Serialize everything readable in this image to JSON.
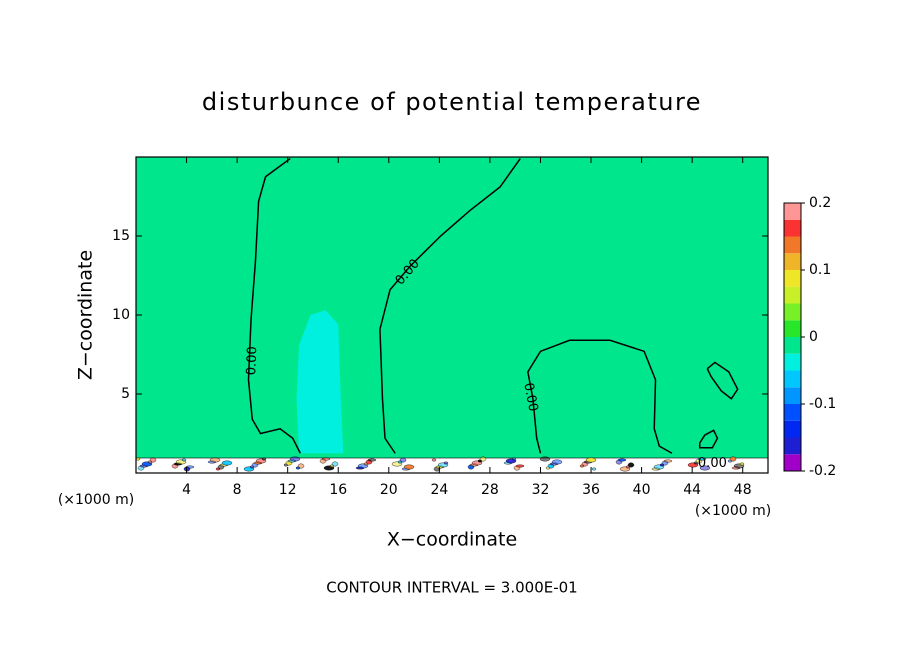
{
  "chart_data": {
    "type": "contour",
    "title": "disturbunce of potential temperature",
    "xlabel": "X−coordinate",
    "ylabel": "Z−coordinate",
    "x_unit": "(×1000 m)",
    "y_unit": "(×1000 m)",
    "footnote": "CONTOUR INTERVAL = 3.000E-01",
    "xlim": [
      0,
      50
    ],
    "ylim": [
      0,
      20
    ],
    "xticks": [
      4,
      8,
      12,
      16,
      20,
      24,
      28,
      32,
      36,
      40,
      44,
      48
    ],
    "yticks": [
      5,
      10,
      15
    ],
    "background_value": -0.01,
    "regions": [
      {
        "value": -0.04,
        "x": [
          12.9,
          12.7,
          12.9,
          13.8,
          15.0,
          16.0,
          16.2,
          16.4
        ],
        "y": [
          1.25,
          4.7,
          8.1,
          10.0,
          10.3,
          9.4,
          4.7,
          1.25
        ]
      }
    ],
    "contours": [
      {
        "label": "0.00",
        "label_x": 9.2,
        "label_y": 7.1,
        "x": [
          13.0,
          12.4,
          11.4,
          9.85,
          9.2,
          8.9,
          9.1,
          9.45,
          9.7,
          10.25,
          12.2
        ],
        "y": [
          1.25,
          2.2,
          2.8,
          2.5,
          3.4,
          5.9,
          9.7,
          13.4,
          17.2,
          18.75,
          19.9
        ]
      },
      {
        "label": "0.00",
        "label_x": 21.5,
        "label_y": 12.7,
        "x": [
          30.4,
          28.8,
          26.4,
          24.1,
          21.7,
          20.1,
          19.3,
          19.5,
          19.7,
          20.5
        ],
        "y": [
          19.9,
          18.1,
          16.6,
          15.0,
          13.1,
          11.6,
          9.1,
          4.7,
          2.2,
          1.25
        ]
      },
      {
        "label": "0.00",
        "label_x": 31.2,
        "label_y": 4.8,
        "x": [
          32.0,
          31.7,
          31.4,
          31.0,
          32.0,
          34.3,
          37.5,
          40.2,
          41.1,
          41.0,
          41.4,
          42.4
        ],
        "y": [
          1.25,
          2.2,
          4.7,
          6.4,
          7.7,
          8.4,
          8.4,
          7.7,
          5.9,
          2.8,
          1.7,
          1.25
        ]
      },
      {
        "x": [
          45.2,
          45.8,
          46.9,
          47.6,
          47.1,
          46.3,
          45.5,
          45.2
        ],
        "y": [
          6.6,
          7.0,
          6.4,
          5.3,
          4.7,
          5.2,
          6.1,
          6.6
        ]
      },
      {
        "label": "0.00",
        "label_x": 45.6,
        "label_y": 0.6,
        "x": [
          44.6,
          45.0,
          45.7,
          46.0,
          45.6,
          44.6,
          44.6
        ],
        "y": [
          1.9,
          2.4,
          2.7,
          2.2,
          1.6,
          1.6,
          1.9
        ]
      }
    ],
    "colorbar": {
      "levels": [
        -0.2,
        -0.175,
        -0.15,
        -0.125,
        -0.1,
        -0.075,
        -0.05,
        -0.025,
        0,
        0.025,
        0.05,
        0.075,
        0.1,
        0.125,
        0.15,
        0.175,
        0.2
      ],
      "colors": [
        "#a000c8",
        "#1e1ed2",
        "#0028f0",
        "#0050ff",
        "#0096ff",
        "#00c8ff",
        "#00f0e0",
        "#00e68c",
        "#28e628",
        "#78f028",
        "#c8f028",
        "#f0e628",
        "#f0b428",
        "#f07828",
        "#fa3232",
        "#ff9696"
      ],
      "ticks": [
        0.2,
        0.1,
        0,
        -0.1,
        -0.2
      ]
    }
  }
}
